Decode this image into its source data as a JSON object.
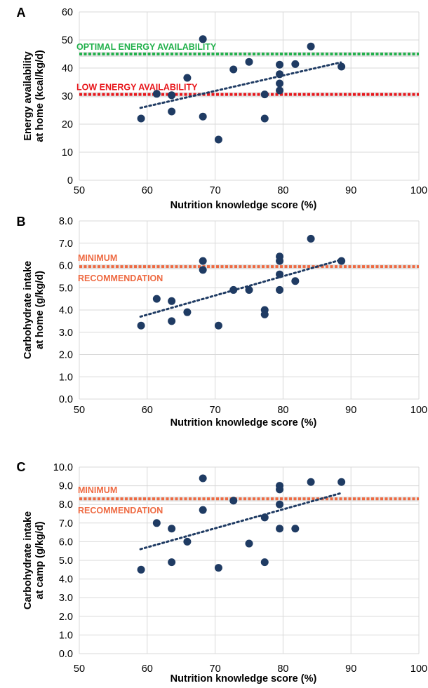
{
  "chart_data": [
    {
      "type": "scatter",
      "panel_label": "A",
      "xlabel": "Nutrition knowledge score (%)",
      "ylabel_lines": [
        "Energy availability",
        "at home (kcal/kg/d)"
      ],
      "xlim": [
        50,
        100
      ],
      "ylim": [
        0,
        60
      ],
      "x_ticks": [
        "50",
        "60",
        "70",
        "80",
        "90",
        "100"
      ],
      "y_ticks": [
        "0",
        "10",
        "20",
        "30",
        "40",
        "50",
        "60"
      ],
      "grid": true,
      "points": [
        {
          "x": 59.1,
          "y": 22.0
        },
        {
          "x": 61.4,
          "y": 30.8
        },
        {
          "x": 63.6,
          "y": 30.3
        },
        {
          "x": 63.6,
          "y": 24.5
        },
        {
          "x": 65.9,
          "y": 36.5
        },
        {
          "x": 68.2,
          "y": 50.3
        },
        {
          "x": 68.2,
          "y": 22.7
        },
        {
          "x": 70.5,
          "y": 14.5
        },
        {
          "x": 72.7,
          "y": 39.5
        },
        {
          "x": 75.0,
          "y": 42.2
        },
        {
          "x": 77.3,
          "y": 30.6
        },
        {
          "x": 77.3,
          "y": 22.0
        },
        {
          "x": 79.5,
          "y": 41.2
        },
        {
          "x": 79.5,
          "y": 37.8
        },
        {
          "x": 79.5,
          "y": 34.5
        },
        {
          "x": 79.5,
          "y": 32.0
        },
        {
          "x": 81.8,
          "y": 41.4
        },
        {
          "x": 84.1,
          "y": 47.7
        },
        {
          "x": 88.6,
          "y": 40.5
        }
      ],
      "trendline": {
        "x": [
          59,
          88.5
        ],
        "y": [
          25.8,
          42.0
        ]
      },
      "reference_lines": [
        {
          "y": 45,
          "labels": [
            "OPTIMAL ENERGY AVAILABILITY"
          ],
          "color": "#22b14c"
        },
        {
          "y": 30.6,
          "labels": [
            "LOW ENERGY AVAILABILITY"
          ],
          "color": "#e8161b"
        }
      ],
      "point_color": "#1f3b63"
    },
    {
      "type": "scatter",
      "panel_label": "B",
      "xlabel": "Nutrition knowledge score (%)",
      "ylabel_lines": [
        "Carbohydrate intake",
        "at home (g/kg/d)"
      ],
      "xlim": [
        50,
        100
      ],
      "ylim": [
        0,
        8
      ],
      "x_ticks": [
        "50",
        "60",
        "70",
        "80",
        "90",
        "100"
      ],
      "y_ticks": [
        "0.0",
        "1.0",
        "2.0",
        "3.0",
        "4.0",
        "5.0",
        "6.0",
        "7.0",
        "8.0"
      ],
      "grid": true,
      "points": [
        {
          "x": 59.1,
          "y": 3.3
        },
        {
          "x": 61.4,
          "y": 4.5
        },
        {
          "x": 63.6,
          "y": 4.4
        },
        {
          "x": 63.6,
          "y": 3.5
        },
        {
          "x": 65.9,
          "y": 3.9
        },
        {
          "x": 68.2,
          "y": 6.2
        },
        {
          "x": 68.2,
          "y": 5.8
        },
        {
          "x": 70.5,
          "y": 3.3
        },
        {
          "x": 72.7,
          "y": 4.9
        },
        {
          "x": 75.0,
          "y": 4.9
        },
        {
          "x": 77.3,
          "y": 4.0
        },
        {
          "x": 77.3,
          "y": 3.8
        },
        {
          "x": 79.5,
          "y": 6.4
        },
        {
          "x": 79.5,
          "y": 6.2
        },
        {
          "x": 79.5,
          "y": 5.6
        },
        {
          "x": 79.5,
          "y": 4.9
        },
        {
          "x": 81.8,
          "y": 5.3
        },
        {
          "x": 84.1,
          "y": 7.2
        },
        {
          "x": 88.6,
          "y": 6.2
        }
      ],
      "trendline": {
        "x": [
          59,
          88.5
        ],
        "y": [
          3.7,
          6.25
        ]
      },
      "reference_lines": [
        {
          "y": 5.95,
          "labels": [
            "MINIMUM",
            "RECOMMENDATION"
          ],
          "color": "#ee6a42"
        }
      ],
      "point_color": "#1f3b63"
    },
    {
      "type": "scatter",
      "panel_label": "C",
      "xlabel": "Nutrition knowledge score (%)",
      "ylabel_lines": [
        "Carbohydrate intake",
        "at camp (g/kg/d)"
      ],
      "xlim": [
        50,
        100
      ],
      "ylim": [
        0,
        10
      ],
      "x_ticks": [
        "50",
        "60",
        "70",
        "80",
        "90",
        "100"
      ],
      "y_ticks": [
        "0.0",
        "1.0",
        "2.0",
        "3.0",
        "4.0",
        "5.0",
        "6.0",
        "7.0",
        "8.0",
        "9.0",
        "10.0"
      ],
      "grid": true,
      "points": [
        {
          "x": 59.1,
          "y": 4.5
        },
        {
          "x": 61.4,
          "y": 7.0
        },
        {
          "x": 63.6,
          "y": 6.7
        },
        {
          "x": 63.6,
          "y": 4.9
        },
        {
          "x": 65.9,
          "y": 6.0
        },
        {
          "x": 68.2,
          "y": 9.4
        },
        {
          "x": 68.2,
          "y": 7.7
        },
        {
          "x": 70.5,
          "y": 4.6
        },
        {
          "x": 72.7,
          "y": 8.2
        },
        {
          "x": 75.0,
          "y": 5.9
        },
        {
          "x": 77.3,
          "y": 7.3
        },
        {
          "x": 77.3,
          "y": 4.9
        },
        {
          "x": 79.5,
          "y": 9.0
        },
        {
          "x": 79.5,
          "y": 8.8
        },
        {
          "x": 79.5,
          "y": 8.0
        },
        {
          "x": 79.5,
          "y": 6.7
        },
        {
          "x": 81.8,
          "y": 6.7
        },
        {
          "x": 84.1,
          "y": 9.2
        },
        {
          "x": 88.6,
          "y": 9.2
        }
      ],
      "trendline": {
        "x": [
          59,
          88.5
        ],
        "y": [
          5.6,
          8.6
        ]
      },
      "reference_lines": [
        {
          "y": 8.3,
          "labels": [
            "MINIMUM",
            "RECOMMENDATION"
          ],
          "color": "#ee6a42"
        }
      ],
      "point_color": "#1f3b63"
    }
  ]
}
